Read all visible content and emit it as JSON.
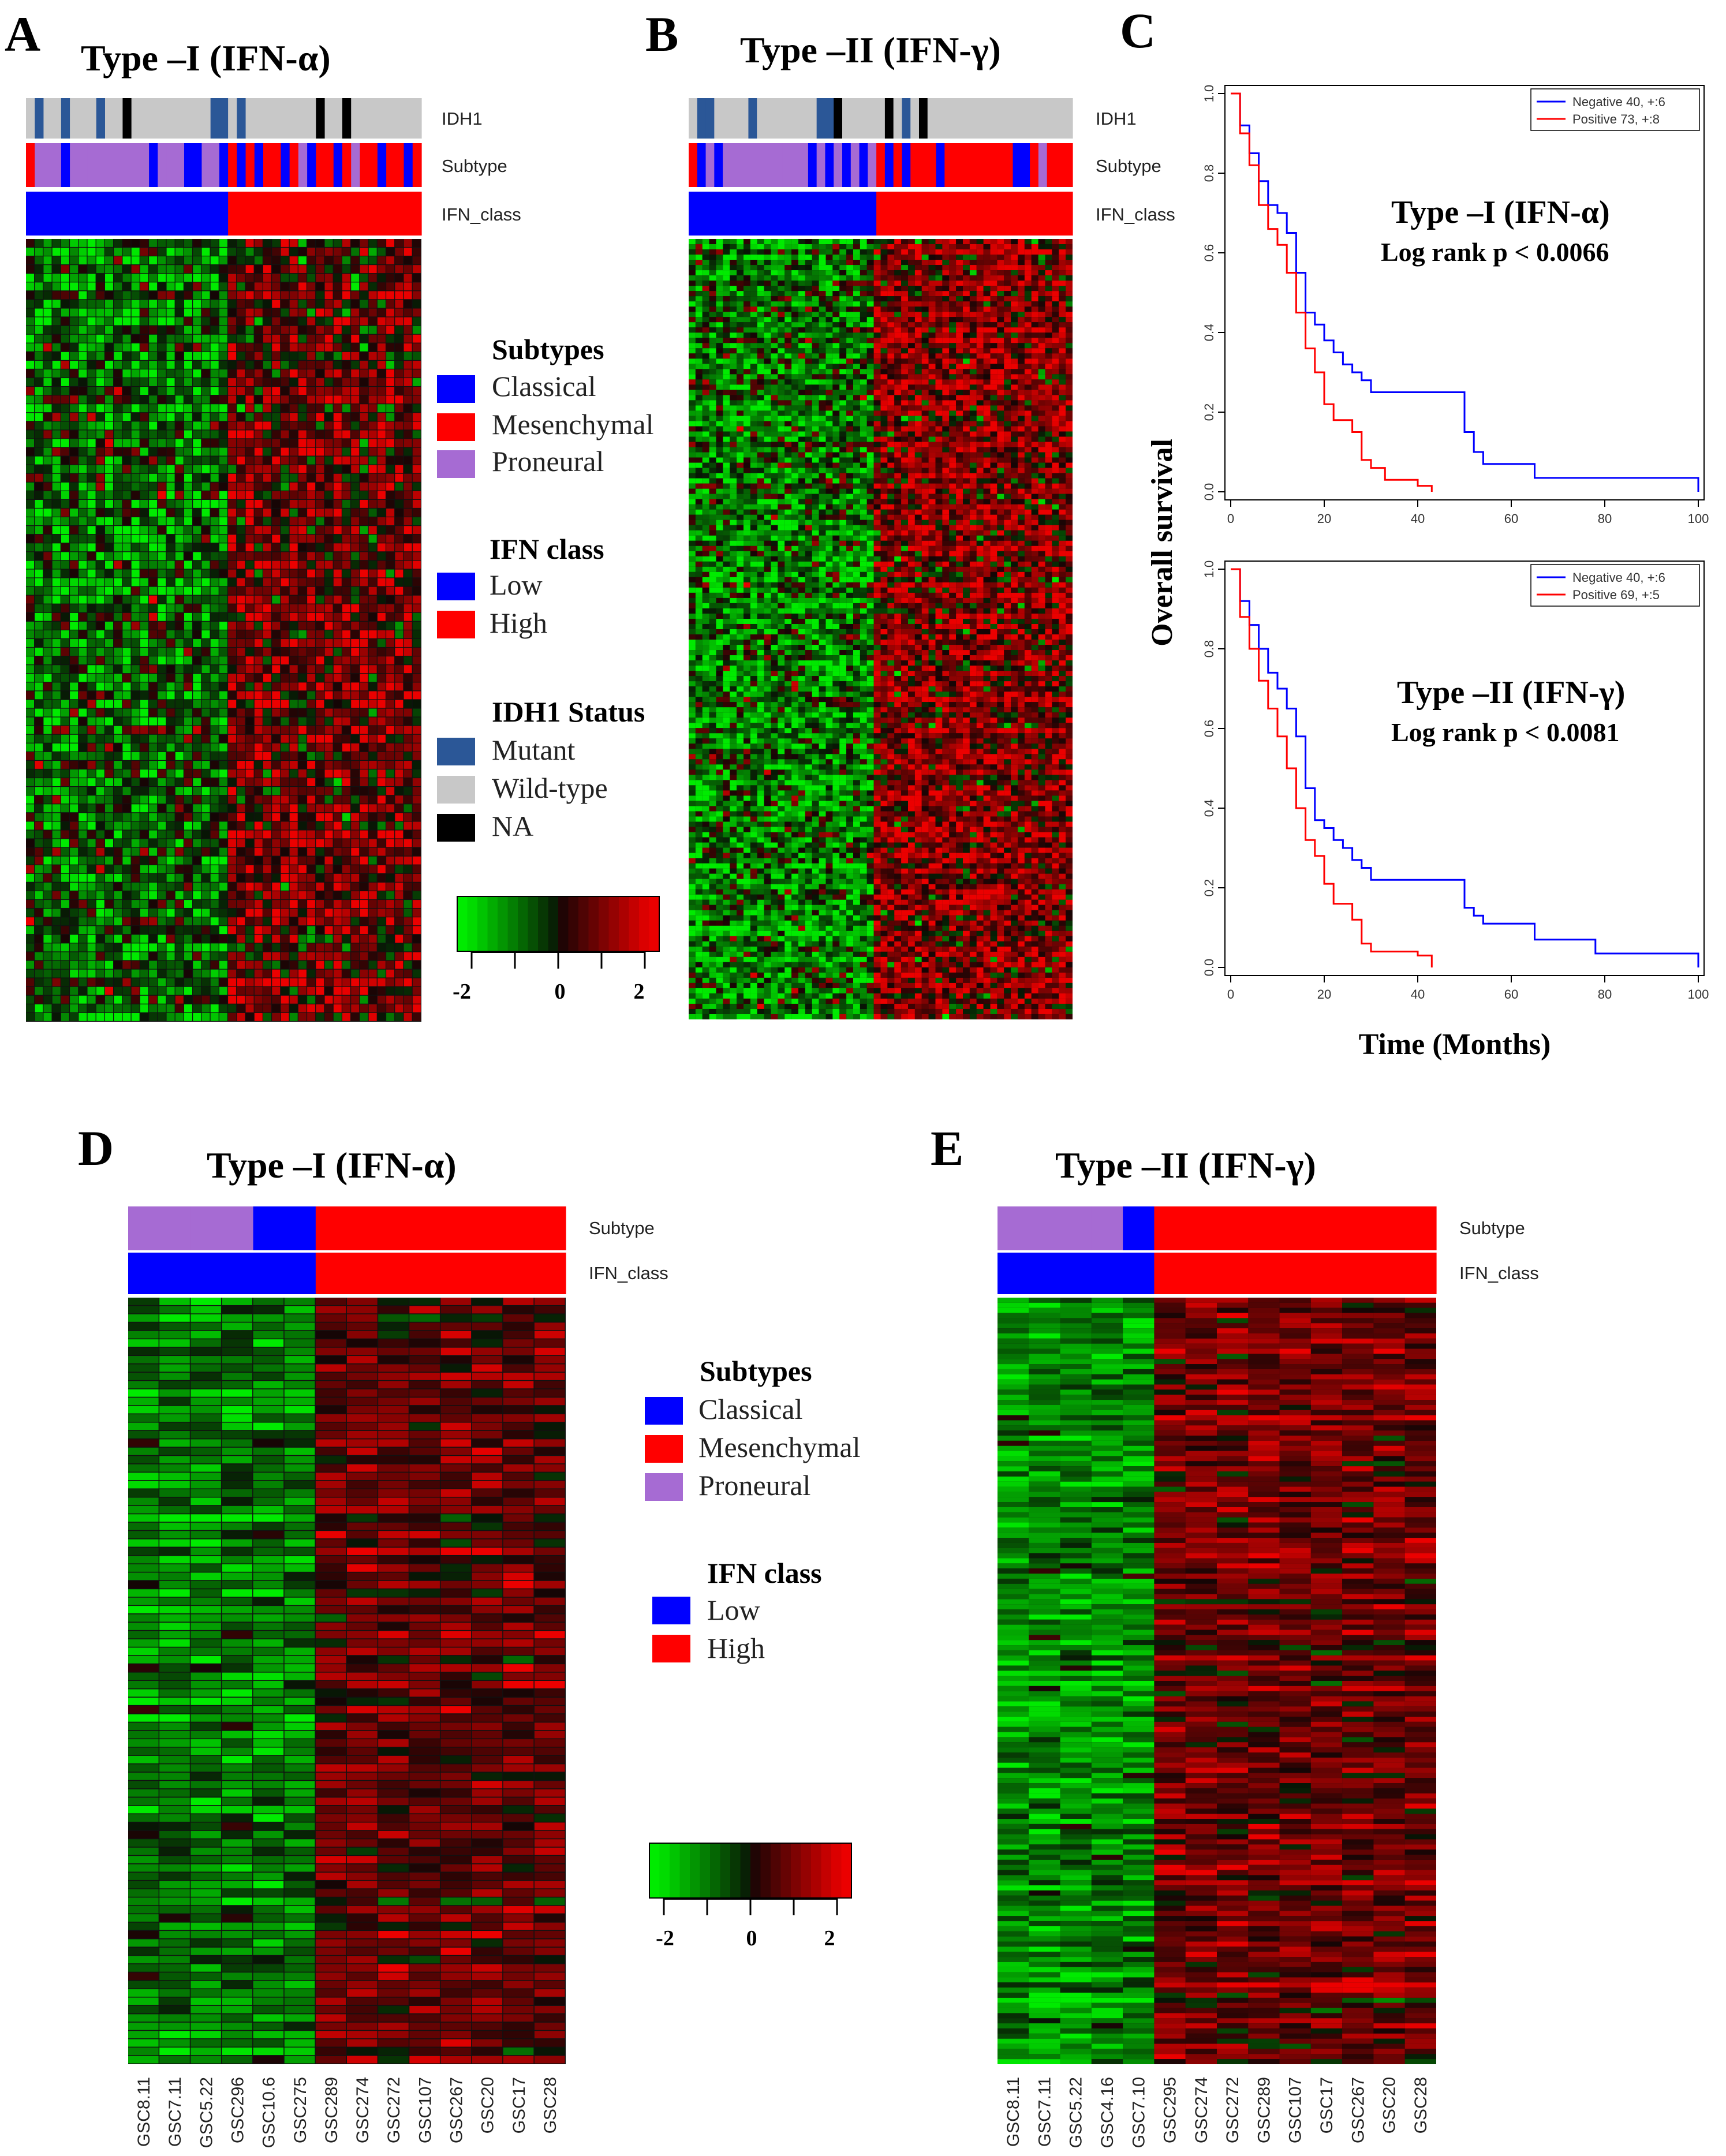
{
  "colors": {
    "classical": "#0000ff",
    "mesenchymal": "#ff0000",
    "proneural": "#a66bd3",
    "low": "#0000ff",
    "high": "#ff0000",
    "mutant": "#2b5797",
    "wildtype": "#c8c8c8",
    "na": "#000000",
    "negative": "#0000ff",
    "positive": "#ff0000"
  },
  "panels": {
    "A": {
      "letter": "A",
      "title": "Type –I (IFN-α)"
    },
    "B": {
      "letter": "B",
      "title": "Type –II (IFN-γ)"
    },
    "C": {
      "letter": "C"
    },
    "D": {
      "letter": "D",
      "title": "Type –I (IFN-α)"
    },
    "E": {
      "letter": "E",
      "title": "Type –II (IFN-γ)"
    }
  },
  "tracks": {
    "idh1": "IDH1",
    "subtype": "Subtype",
    "ifn_class": "IFN_class"
  },
  "legend": {
    "subtypes_title": "Subtypes",
    "classical": "Classical",
    "mesenchymal": "Mesenchymal",
    "proneural": "Proneural",
    "ifn_title": "IFN class",
    "low": "Low",
    "high": "High",
    "idh1_title": "IDH1 Status",
    "mutant": "Mutant",
    "wildtype": "Wild-type",
    "na": "NA"
  },
  "colorscale": {
    "ticks": [
      "-2",
      "0",
      "2"
    ]
  },
  "km": {
    "ylabel": "Overall  survival",
    "xlabel": "Time  (Months)",
    "xticks": [
      "0",
      "20",
      "40",
      "60",
      "80",
      "100"
    ],
    "yticks": [
      "0.0",
      "0.2",
      "0.4",
      "0.6",
      "0.8",
      "1.0"
    ],
    "top": {
      "neg_label": "Negative  40, +:6",
      "pos_label": "Positive  73, +:8",
      "anno_title": "Type –I (IFN-α)",
      "anno_p": "Log rank p < 0.0066"
    },
    "bottom": {
      "neg_label": "Negative  40, +:6",
      "pos_label": "Positive  69, +:5",
      "anno_title": "Type –II (IFN-γ)",
      "anno_p": "Log rank p < 0.0081"
    }
  },
  "samples": {
    "D": [
      "GSC8.11",
      "GSC7.11",
      "GSC5.22",
      "GSC296",
      "GSC10.6",
      "GSC275",
      "GSC289",
      "GSC274",
      "GSC272",
      "GSC107",
      "GSC267",
      "GSC20",
      "GSC17",
      "GSC28"
    ],
    "E": [
      "GSC8.11",
      "GSC7.11",
      "GSC5.22",
      "GSC4.16",
      "GSC7.10",
      "GSC295",
      "GSC274",
      "GSC272",
      "GSC289",
      "GSC107",
      "GSC17",
      "GSC267",
      "GSC20",
      "GSC28"
    ]
  },
  "chart_data": [
    {
      "type": "heatmap",
      "panel": "A",
      "title": "Type –I (IFN-α)",
      "tracks": [
        "IDH1",
        "Subtype",
        "IFN_class"
      ],
      "ifn_class_split": {
        "low_fraction": 0.51
      },
      "color_range": [
        -2,
        2
      ]
    },
    {
      "type": "heatmap",
      "panel": "B",
      "title": "Type –II (IFN-γ)",
      "tracks": [
        "IDH1",
        "Subtype",
        "IFN_class"
      ],
      "ifn_class_split": {
        "low_fraction": 0.49
      },
      "color_range": [
        -2,
        2
      ]
    },
    {
      "type": "line",
      "panel": "C-top",
      "title": "Type –I (IFN-α)",
      "xlabel": "Time  (Months)",
      "ylabel": "Overall  survival",
      "xlim": [
        0,
        100
      ],
      "ylim": [
        0,
        1
      ],
      "series": [
        {
          "name": "Negative",
          "x": [
            0,
            2,
            4,
            6,
            8,
            10,
            12,
            14,
            16,
            18,
            20,
            22,
            24,
            26,
            28,
            30,
            40,
            48,
            50,
            52,
            54,
            60,
            65,
            80,
            100
          ],
          "y": [
            1.0,
            0.92,
            0.85,
            0.78,
            0.72,
            0.7,
            0.65,
            0.55,
            0.45,
            0.42,
            0.38,
            0.35,
            0.32,
            0.3,
            0.28,
            0.25,
            0.25,
            0.25,
            0.15,
            0.1,
            0.07,
            0.07,
            0.035,
            0.035,
            0.0
          ]
        },
        {
          "name": "Positive",
          "x": [
            0,
            2,
            4,
            6,
            8,
            10,
            12,
            14,
            16,
            18,
            20,
            22,
            24,
            26,
            28,
            30,
            33,
            36,
            40,
            43
          ],
          "y": [
            1.0,
            0.9,
            0.82,
            0.72,
            0.66,
            0.62,
            0.55,
            0.45,
            0.36,
            0.3,
            0.22,
            0.18,
            0.18,
            0.15,
            0.08,
            0.06,
            0.03,
            0.03,
            0.015,
            0.0
          ]
        }
      ]
    },
    {
      "type": "line",
      "panel": "C-bottom",
      "title": "Type –II (IFN-γ)",
      "xlabel": "Time  (Months)",
      "ylabel": "Overall  survival",
      "xlim": [
        0,
        100
      ],
      "ylim": [
        0,
        1
      ],
      "series": [
        {
          "name": "Negative",
          "x": [
            0,
            2,
            4,
            6,
            8,
            10,
            12,
            14,
            16,
            18,
            20,
            22,
            24,
            26,
            28,
            30,
            40,
            48,
            50,
            52,
            54,
            60,
            65,
            78,
            100
          ],
          "y": [
            1.0,
            0.92,
            0.86,
            0.8,
            0.74,
            0.7,
            0.65,
            0.58,
            0.45,
            0.37,
            0.35,
            0.32,
            0.3,
            0.27,
            0.25,
            0.22,
            0.22,
            0.22,
            0.15,
            0.13,
            0.11,
            0.11,
            0.07,
            0.035,
            0.0
          ]
        },
        {
          "name": "Positive",
          "x": [
            0,
            2,
            4,
            6,
            8,
            10,
            12,
            14,
            16,
            18,
            20,
            22,
            24,
            26,
            28,
            30,
            33,
            36,
            40,
            43
          ],
          "y": [
            1.0,
            0.88,
            0.8,
            0.72,
            0.65,
            0.58,
            0.5,
            0.4,
            0.32,
            0.28,
            0.21,
            0.16,
            0.16,
            0.12,
            0.06,
            0.04,
            0.04,
            0.04,
            0.03,
            0.0
          ]
        }
      ]
    },
    {
      "type": "heatmap",
      "panel": "D",
      "title": "Type –I (IFN-α)",
      "tracks": [
        "Subtype",
        "IFN_class"
      ],
      "columns": [
        "GSC8.11",
        "GSC7.11",
        "GSC5.22",
        "GSC296",
        "GSC10.6",
        "GSC275",
        "GSC289",
        "GSC274",
        "GSC272",
        "GSC107",
        "GSC267",
        "GSC20",
        "GSC17",
        "GSC28"
      ],
      "subtype": [
        "Proneural",
        "Proneural",
        "Proneural",
        "Proneural",
        "Classical",
        "Classical",
        "Mesenchymal",
        "Mesenchymal",
        "Mesenchymal",
        "Mesenchymal",
        "Mesenchymal",
        "Mesenchymal",
        "Mesenchymal",
        "Mesenchymal"
      ],
      "ifn_class": [
        "Low",
        "Low",
        "Low",
        "Low",
        "Low",
        "Low",
        "High",
        "High",
        "High",
        "High",
        "High",
        "High",
        "High",
        "High"
      ],
      "color_range": [
        -2,
        2
      ]
    },
    {
      "type": "heatmap",
      "panel": "E",
      "title": "Type –II (IFN-γ)",
      "tracks": [
        "Subtype",
        "IFN_class"
      ],
      "columns": [
        "GSC8.11",
        "GSC7.11",
        "GSC5.22",
        "GSC4.16",
        "GSC7.10",
        "GSC295",
        "GSC274",
        "GSC272",
        "GSC289",
        "GSC107",
        "GSC17",
        "GSC267",
        "GSC20",
        "GSC28"
      ],
      "subtype": [
        "Proneural",
        "Proneural",
        "Proneural",
        "Proneural",
        "Classical",
        "Mesenchymal",
        "Mesenchymal",
        "Mesenchymal",
        "Mesenchymal",
        "Mesenchymal",
        "Mesenchymal",
        "Mesenchymal",
        "Mesenchymal",
        "Mesenchymal"
      ],
      "ifn_class": [
        "Low",
        "Low",
        "Low",
        "Low",
        "Low",
        "High",
        "High",
        "High",
        "High",
        "High",
        "High",
        "High",
        "High",
        "High"
      ],
      "color_range": [
        -2,
        2
      ]
    }
  ]
}
